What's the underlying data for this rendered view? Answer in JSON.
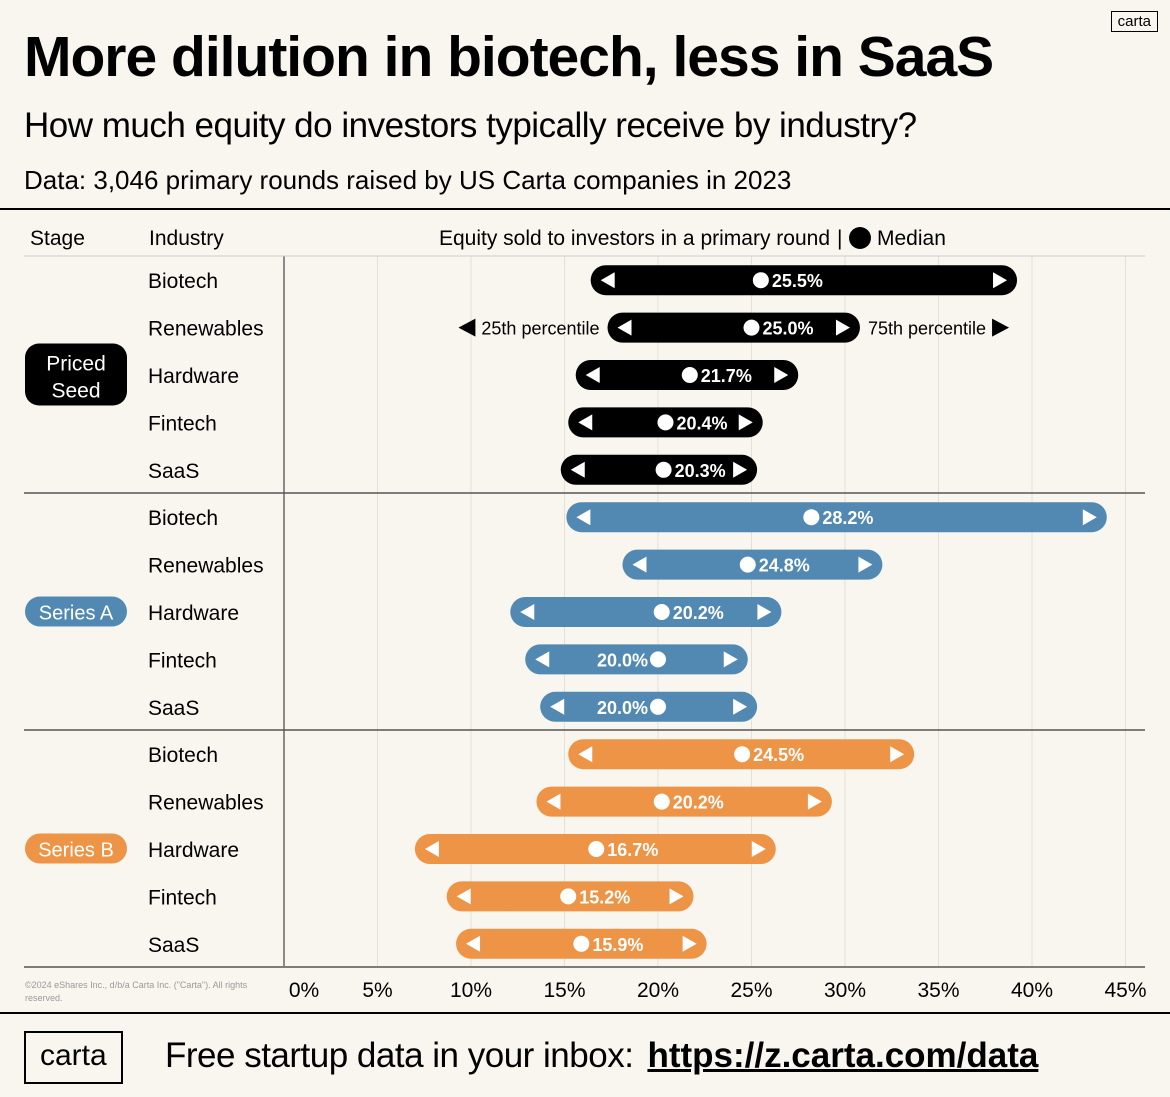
{
  "header": {
    "title": "More dilution in biotech, less in SaaS",
    "subtitle": "How much equity do investors typically receive by industry?",
    "data_note": "Data: 3,046 primary rounds raised by US Carta companies in 2023",
    "logo": "carta"
  },
  "footer": {
    "copyright": "©2024 eShares Inc., d/b/a Carta Inc. (\"Carta\"). All rights reserved.",
    "logo": "carta",
    "text": "Free startup data in your inbox:",
    "link": "https://z.carta.com/data"
  },
  "chart_data": {
    "type": "range-bar",
    "columns": {
      "stage": "Stage",
      "industry": "Industry",
      "value": "Equity sold to investors in a primary round",
      "legend": "Median"
    },
    "annotations": {
      "p25": "25th percentile",
      "p75": "75th percentile"
    },
    "xlim": [
      0,
      45
    ],
    "x_ticks": [
      "0%",
      "5%",
      "10%",
      "15%",
      "20%",
      "25%",
      "30%",
      "35%",
      "40%",
      "45%"
    ],
    "grid": true,
    "groups": [
      {
        "stage": "Priced Seed",
        "color": "#000000",
        "rows": [
          {
            "industry": "Biotech",
            "p25": 16.4,
            "median": 25.5,
            "p75": 39.2,
            "label": "25.5%"
          },
          {
            "industry": "Renewables",
            "p25": 17.3,
            "median": 25.0,
            "p75": 30.8,
            "label": "25.0%"
          },
          {
            "industry": "Hardware",
            "p25": 15.6,
            "median": 21.7,
            "p75": 27.5,
            "label": "21.7%"
          },
          {
            "industry": "Fintech",
            "p25": 15.2,
            "median": 20.4,
            "p75": 25.6,
            "label": "20.4%"
          },
          {
            "industry": "SaaS",
            "p25": 14.8,
            "median": 20.3,
            "p75": 25.3,
            "label": "20.3%"
          }
        ]
      },
      {
        "stage": "Series A",
        "color": "#5189b3",
        "rows": [
          {
            "industry": "Biotech",
            "p25": 15.1,
            "median": 28.2,
            "p75": 44.0,
            "label": "28.2%"
          },
          {
            "industry": "Renewables",
            "p25": 18.1,
            "median": 24.8,
            "p75": 32.0,
            "label": "24.8%"
          },
          {
            "industry": "Hardware",
            "p25": 12.1,
            "median": 20.2,
            "p75": 26.6,
            "label": "20.2%"
          },
          {
            "industry": "Fintech",
            "p25": 12.9,
            "median": 20.0,
            "p75": 24.8,
            "label": "20.0%"
          },
          {
            "industry": "SaaS",
            "p25": 13.7,
            "median": 20.0,
            "p75": 25.3,
            "label": "20.0%"
          }
        ]
      },
      {
        "stage": "Series B",
        "color": "#ee9447",
        "rows": [
          {
            "industry": "Biotech",
            "p25": 15.2,
            "median": 24.5,
            "p75": 33.7,
            "label": "24.5%"
          },
          {
            "industry": "Renewables",
            "p25": 13.5,
            "median": 20.2,
            "p75": 29.3,
            "label": "20.2%"
          },
          {
            "industry": "Hardware",
            "p25": 7.0,
            "median": 16.7,
            "p75": 26.3,
            "label": "16.7%"
          },
          {
            "industry": "Fintech",
            "p25": 8.7,
            "median": 15.2,
            "p75": 21.9,
            "label": "15.2%"
          },
          {
            "industry": "SaaS",
            "p25": 9.2,
            "median": 15.9,
            "p75": 22.6,
            "label": "15.9%"
          }
        ]
      }
    ]
  }
}
